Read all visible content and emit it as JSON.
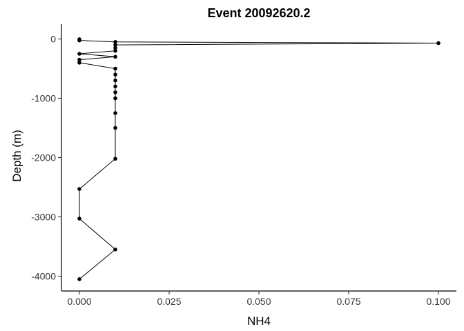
{
  "chart_data": {
    "type": "line",
    "title": "Event 20092620.2",
    "xlabel": "NH4",
    "ylabel": "Depth (m)",
    "xlim": [
      -0.005,
      0.105
    ],
    "ylim": [
      -4250,
      250
    ],
    "x_ticks": [
      0,
      0.025,
      0.05,
      0.075,
      0.1
    ],
    "x_tick_labels": [
      "0.000",
      "0.025",
      "0.050",
      "0.075",
      "0.100"
    ],
    "y_ticks": [
      0,
      -1000,
      -2000,
      -3000,
      -4000
    ],
    "y_tick_labels": [
      "0",
      "-1000",
      "-2000",
      "-3000",
      "-4000"
    ],
    "grid": false,
    "series": [
      {
        "points": [
          {
            "x": 0.0,
            "y": -5
          },
          {
            "x": 0.0,
            "y": -25
          },
          {
            "x": 0.01,
            "y": -50
          },
          {
            "x": 0.1,
            "y": -70
          },
          {
            "x": 0.01,
            "y": -100
          },
          {
            "x": 0.01,
            "y": -150
          },
          {
            "x": 0.01,
            "y": -200
          },
          {
            "x": 0.0,
            "y": -250
          },
          {
            "x": 0.01,
            "y": -300
          },
          {
            "x": 0.0,
            "y": -350
          },
          {
            "x": 0.0,
            "y": -400
          },
          {
            "x": 0.01,
            "y": -500
          },
          {
            "x": 0.01,
            "y": -600
          },
          {
            "x": 0.01,
            "y": -700
          },
          {
            "x": 0.01,
            "y": -800
          },
          {
            "x": 0.01,
            "y": -900
          },
          {
            "x": 0.01,
            "y": -1000
          },
          {
            "x": 0.01,
            "y": -1250
          },
          {
            "x": 0.01,
            "y": -1500
          },
          {
            "x": 0.01,
            "y": -2020
          },
          {
            "x": 0.0,
            "y": -2530
          },
          {
            "x": 0.0,
            "y": -3030
          },
          {
            "x": 0.01,
            "y": -3550
          },
          {
            "x": 0.0,
            "y": -4050
          }
        ]
      }
    ]
  }
}
